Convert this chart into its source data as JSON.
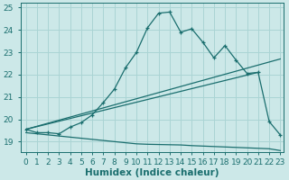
{
  "xlabel": "Humidex (Indice chaleur)",
  "background_color": "#cce8e8",
  "grid_color": "#aad4d4",
  "line_color": "#1a6e6e",
  "xlim": [
    -0.5,
    23.3
  ],
  "ylim": [
    18.55,
    25.2
  ],
  "yticks": [
    19,
    20,
    21,
    22,
    23,
    24,
    25
  ],
  "xticks": [
    0,
    1,
    2,
    3,
    4,
    5,
    6,
    7,
    8,
    9,
    10,
    11,
    12,
    13,
    14,
    15,
    16,
    17,
    18,
    19,
    20,
    21,
    22,
    23
  ],
  "line1_x": [
    0,
    1,
    2,
    3,
    4,
    5,
    6,
    7,
    8,
    9,
    10,
    11,
    12,
    13,
    14,
    15,
    16,
    17,
    18,
    19,
    20,
    21,
    22,
    23
  ],
  "line1_y": [
    19.55,
    19.4,
    19.4,
    19.35,
    19.65,
    19.85,
    20.2,
    20.75,
    21.35,
    22.3,
    23.0,
    24.1,
    24.75,
    24.8,
    23.9,
    24.05,
    23.45,
    22.75,
    23.3,
    22.65,
    22.05,
    22.1,
    19.9,
    19.3
  ],
  "line2_x": [
    0,
    21
  ],
  "line2_y": [
    19.55,
    22.1
  ],
  "line3_x": [
    0,
    23
  ],
  "line3_y": [
    19.55,
    22.7
  ],
  "line4_x": [
    0,
    1,
    2,
    3,
    4,
    5,
    6,
    7,
    8,
    9,
    10,
    11,
    12,
    13,
    14,
    15,
    16,
    17,
    18,
    19,
    20,
    21,
    22,
    23
  ],
  "line4_y": [
    19.4,
    19.35,
    19.3,
    19.25,
    19.2,
    19.15,
    19.1,
    19.05,
    19.0,
    18.95,
    18.9,
    18.88,
    18.87,
    18.86,
    18.85,
    18.82,
    18.8,
    18.78,
    18.76,
    18.74,
    18.72,
    18.7,
    18.68,
    18.6
  ],
  "font_color": "#1a6e6e",
  "tick_fontsize": 6.5,
  "label_fontsize": 7.5
}
